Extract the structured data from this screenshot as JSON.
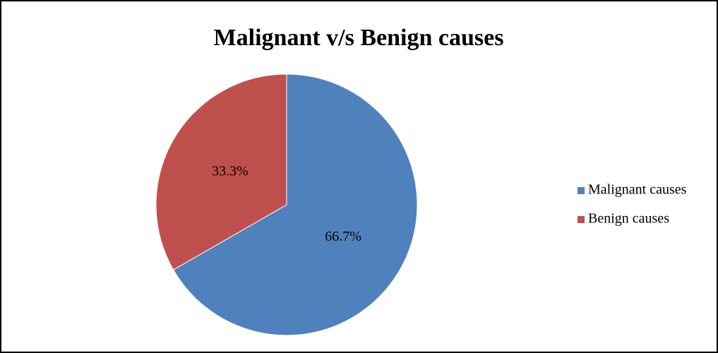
{
  "chart_data": {
    "type": "pie",
    "title": "Malignant v/s Benign causes",
    "categories": [
      "Malignant causes",
      "Benign causes"
    ],
    "values": [
      66.7,
      33.3
    ],
    "value_labels": [
      "66.7%",
      "33.3%"
    ],
    "colors": [
      "#4f81bd",
      "#c0504d"
    ],
    "legend": "right"
  }
}
